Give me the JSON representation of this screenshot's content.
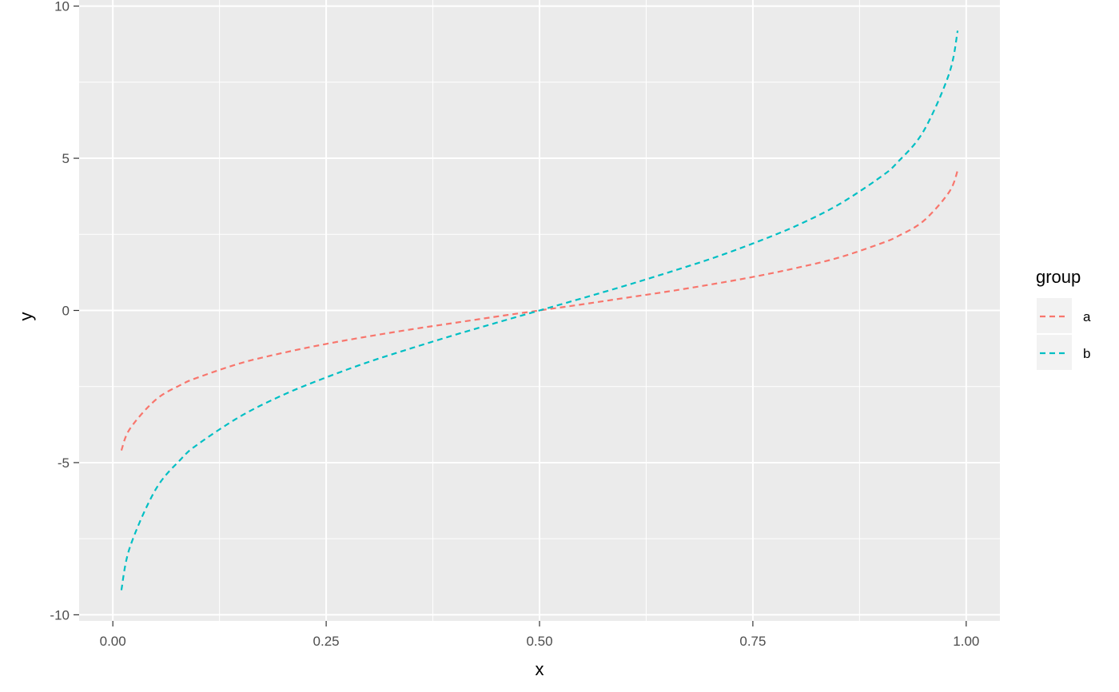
{
  "chart_data": {
    "type": "line",
    "title": "",
    "xlabel": "x",
    "ylabel": "y",
    "xlim": [
      -0.0395,
      1.0395
    ],
    "ylim": [
      -10.2,
      10.2
    ],
    "x_ticks": [
      0.0,
      0.25,
      0.5,
      0.75,
      1.0
    ],
    "x_tick_labels": [
      "0.00",
      "0.25",
      "0.50",
      "0.75",
      "1.00"
    ],
    "y_ticks": [
      -10,
      -5,
      0,
      5,
      10
    ],
    "y_tick_labels": [
      "-10",
      "-5",
      "0",
      "5",
      "10"
    ],
    "grid": true,
    "line_style": "dashed",
    "legend": {
      "title": "group",
      "position": "right"
    },
    "x": [
      0.01,
      0.02,
      0.05,
      0.08,
      0.1,
      0.15,
      0.2,
      0.25,
      0.3,
      0.35,
      0.4,
      0.45,
      0.5,
      0.55,
      0.6,
      0.65,
      0.7,
      0.75,
      0.8,
      0.85,
      0.9,
      0.92,
      0.95,
      0.98,
      0.99
    ],
    "series": [
      {
        "name": "a",
        "color": "#F8766D",
        "values": [
          -4.6,
          -3.89,
          -2.94,
          -2.44,
          -2.2,
          -1.73,
          -1.39,
          -1.1,
          -0.85,
          -0.62,
          -0.41,
          -0.2,
          0.0,
          0.2,
          0.41,
          0.62,
          0.85,
          1.1,
          1.39,
          1.73,
          2.2,
          2.44,
          2.94,
          3.89,
          4.6
        ]
      },
      {
        "name": "b",
        "color": "#00BFC4",
        "values": [
          -9.19,
          -7.78,
          -5.89,
          -4.88,
          -4.39,
          -3.47,
          -2.77,
          -2.2,
          -1.69,
          -1.24,
          -0.81,
          -0.4,
          0.0,
          0.4,
          0.81,
          1.24,
          1.69,
          2.2,
          2.77,
          3.47,
          4.39,
          4.88,
          5.89,
          7.78,
          9.19
        ]
      }
    ]
  }
}
